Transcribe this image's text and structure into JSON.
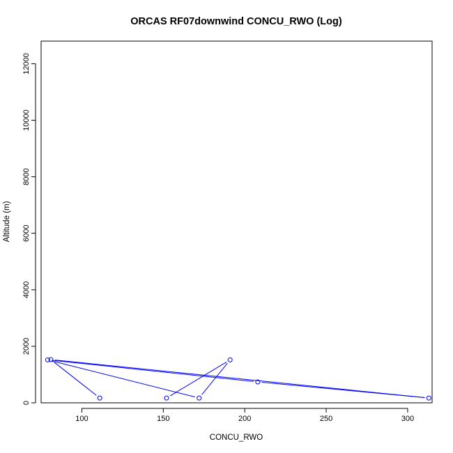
{
  "chart_data": {
    "type": "line",
    "title": "ORCAS RF07downwind CONCU_RWO (Log)",
    "xlabel": "CONCU_RWO",
    "ylabel": "Altitude (m)",
    "xlim": [
      75,
      315
    ],
    "ylim": [
      0,
      12800
    ],
    "xticks": [
      100,
      150,
      200,
      250,
      300
    ],
    "yticks": [
      0,
      2000,
      4000,
      6000,
      8000,
      10000,
      12000
    ],
    "grid": false,
    "series": [
      {
        "color": "#0000ff",
        "markers": "open-circle",
        "points": [
          {
            "x": 111,
            "y": 170
          },
          {
            "x": 81,
            "y": 1530
          },
          {
            "x": 313,
            "y": 170
          },
          {
            "x": 208,
            "y": 740
          },
          {
            "x": 79,
            "y": 1520
          },
          {
            "x": 172,
            "y": 170
          },
          {
            "x": 191,
            "y": 1520
          },
          {
            "x": 152,
            "y": 170
          }
        ]
      }
    ]
  }
}
